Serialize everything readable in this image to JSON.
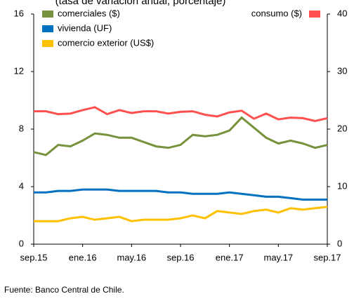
{
  "chart_data": {
    "type": "line",
    "title": "(tasa de variación anual, porcentaje)",
    "source": "Fuente: Banco Central de Chile.",
    "categories": [
      "sep.15",
      null,
      null,
      null,
      "ene.16",
      null,
      null,
      null,
      "may.16",
      null,
      null,
      null,
      "sep.16",
      null,
      null,
      null,
      "ene.17",
      null,
      null,
      null,
      "may.17",
      null,
      null,
      null,
      "sep.17"
    ],
    "ylim": [
      0,
      16
    ],
    "yticks": [
      0,
      4,
      8,
      12,
      16
    ],
    "y2lim": [
      0,
      40
    ],
    "y2ticks": [
      0,
      10,
      20,
      30,
      40
    ],
    "series": [
      {
        "name": "comerciales ($)",
        "color": "#76923c",
        "values": [
          6.4,
          6.2,
          6.9,
          6.8,
          7.2,
          7.7,
          7.6,
          7.4,
          7.4,
          7.1,
          6.8,
          6.7,
          6.9,
          7.6,
          7.5,
          7.6,
          7.9,
          8.8,
          8.1,
          7.4,
          7.0,
          7.2,
          7.0,
          6.7,
          6.9
        ]
      },
      {
        "name": "vivienda (UF)",
        "color": "#0070c0",
        "values": [
          3.6,
          3.6,
          3.7,
          3.7,
          3.8,
          3.8,
          3.8,
          3.7,
          3.7,
          3.7,
          3.7,
          3.6,
          3.6,
          3.5,
          3.5,
          3.5,
          3.6,
          3.5,
          3.4,
          3.3,
          3.3,
          3.2,
          3.1,
          3.1,
          3.1
        ]
      },
      {
        "name": "comercio exterior (US$)",
        "color": "#ffc000",
        "values": [
          1.6,
          1.6,
          1.6,
          1.8,
          1.9,
          1.7,
          1.8,
          1.9,
          1.6,
          1.7,
          1.7,
          1.7,
          1.8,
          2.0,
          1.8,
          2.3,
          2.2,
          2.1,
          2.3,
          2.4,
          2.2,
          2.5,
          2.4,
          2.5,
          2.6
        ]
      },
      {
        "name": "consumo ($)",
        "color": "#ff5050",
        "axis": "y2",
        "values": [
          23.1,
          23.1,
          22.6,
          22.7,
          23.3,
          23.8,
          22.6,
          23.3,
          22.8,
          23.1,
          23.1,
          22.7,
          23.0,
          23.1,
          22.5,
          22.2,
          22.9,
          23.2,
          21.8,
          22.7,
          21.7,
          22.0,
          21.9,
          21.4,
          21.9
        ]
      }
    ]
  }
}
